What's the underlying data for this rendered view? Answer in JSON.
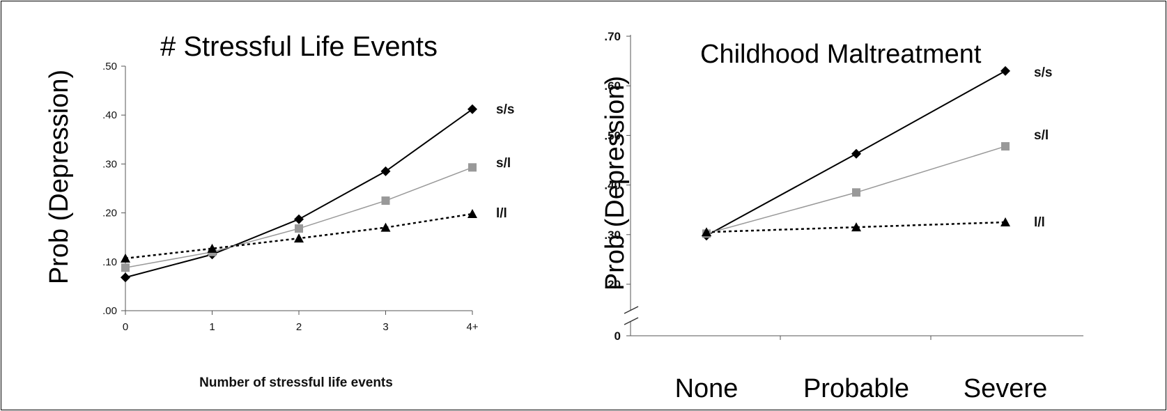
{
  "chart_data": [
    {
      "type": "line",
      "title": "# Stressful Life Events",
      "xlabel": "Number of stressful life events",
      "ylabel": "Prob (Depression)",
      "categories": [
        "0",
        "1",
        "2",
        "3",
        "4+"
      ],
      "ylim": [
        0,
        0.5
      ],
      "yticks": [
        0,
        0.1,
        0.2,
        0.3,
        0.4,
        0.5
      ],
      "ytick_labels": [
        ".00",
        ".10",
        ".20",
        ".30",
        ".40",
        ".50"
      ],
      "grid": false,
      "legend": "end-of-line labels (right)",
      "series": [
        {
          "name": "s/s",
          "values": [
            0.068,
            0.115,
            0.187,
            0.285,
            0.412
          ],
          "color": "#000000",
          "style": "solid",
          "marker": "diamond"
        },
        {
          "name": "s/l",
          "values": [
            0.088,
            0.12,
            0.168,
            0.225,
            0.293
          ],
          "color": "#999999",
          "style": "solid",
          "marker": "square"
        },
        {
          "name": "l/l",
          "values": [
            0.107,
            0.127,
            0.148,
            0.17,
            0.198
          ],
          "color": "#000000",
          "style": "dotted",
          "marker": "triangle"
        }
      ]
    },
    {
      "type": "line",
      "title": "Childhood Maltreatment",
      "xlabel": "",
      "ylabel": "Prob (Depression)",
      "categories": [
        "None",
        "Probable",
        "Severe"
      ],
      "ylim": [
        0.15,
        0.7
      ],
      "axis_break": true,
      "yticks": [
        0,
        0.2,
        0.3,
        0.4,
        0.5,
        0.6,
        0.7
      ],
      "ytick_labels": [
        "0",
        ".20",
        ".30",
        ".40",
        ".50",
        ".60",
        ".70"
      ],
      "grid": false,
      "legend": "end-of-line labels (right)",
      "series": [
        {
          "name": "s/s",
          "values": [
            0.298,
            0.463,
            0.63
          ],
          "color": "#000000",
          "style": "solid",
          "marker": "diamond"
        },
        {
          "name": "s/l",
          "values": [
            0.302,
            0.385,
            0.478
          ],
          "color": "#999999",
          "style": "solid",
          "marker": "square"
        },
        {
          "name": "l/l",
          "values": [
            0.305,
            0.315,
            0.325
          ],
          "color": "#000000",
          "style": "dotted",
          "marker": "triangle"
        }
      ]
    }
  ]
}
